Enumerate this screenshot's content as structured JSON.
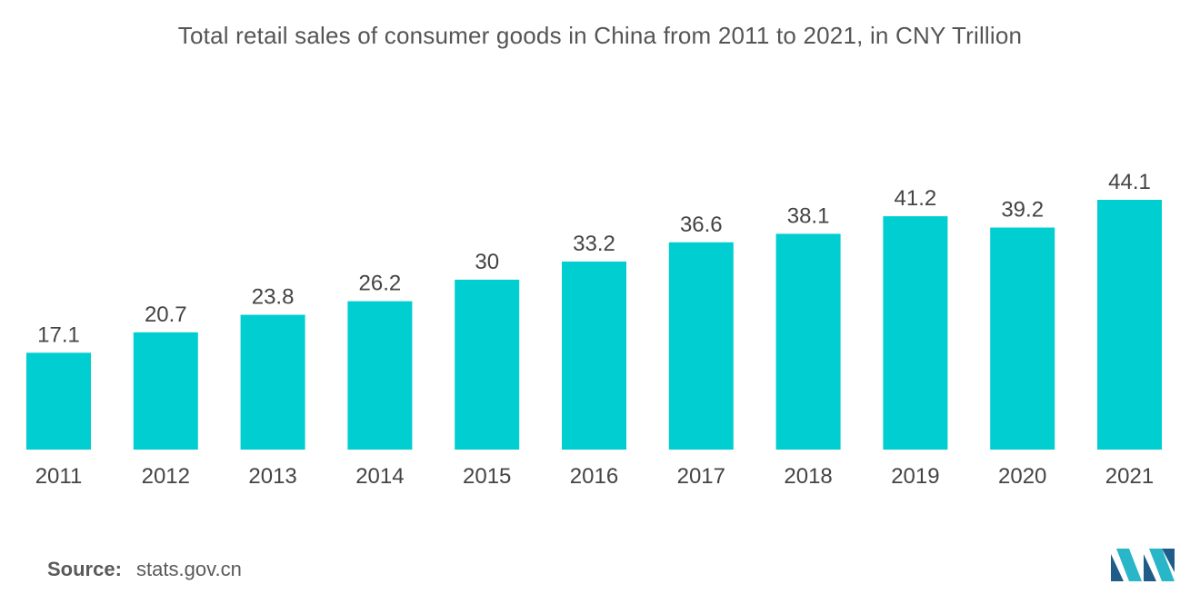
{
  "chart_data": {
    "type": "bar",
    "title": "Total retail sales of consumer goods in China from 2011 to 2021, in CNY Trillion",
    "categories": [
      "2011",
      "2012",
      "2013",
      "2014",
      "2015",
      "2016",
      "2017",
      "2018",
      "2019",
      "2020",
      "2021"
    ],
    "values": [
      17.1,
      20.7,
      23.8,
      26.2,
      30,
      33.2,
      36.6,
      38.1,
      41.2,
      39.2,
      44.1
    ],
    "xlabel": "",
    "ylabel": "",
    "ylim": [
      0,
      44.1
    ],
    "grid": false,
    "legend": "none",
    "bar_color": "#00CED1"
  },
  "source": {
    "label": "Source:",
    "value": "stats.gov.cn"
  },
  "logo": {
    "icon": "mordor-intelligence-logo-icon",
    "color_dark": "#1f5c8a",
    "color_light": "#29b6c9"
  }
}
